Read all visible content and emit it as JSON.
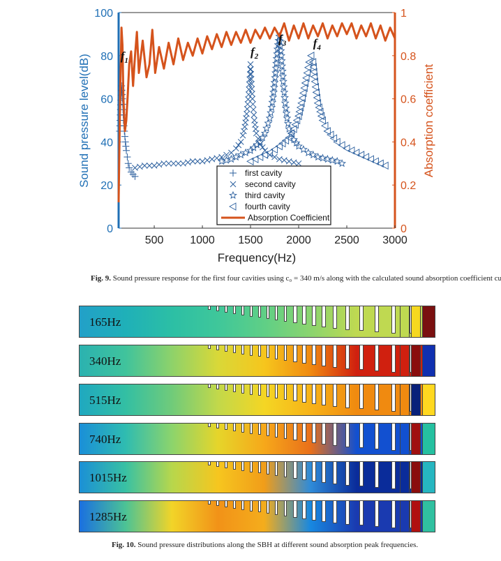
{
  "chart_data": {
    "type": "line",
    "xlabel": "Frequency(Hz)",
    "ylabel_left": "Sound pressure level(dB)",
    "ylabel_right": "Absorption coefficient",
    "xlim": [
      130,
      3000
    ],
    "ylim_left": [
      0,
      100
    ],
    "ylim_right": [
      0,
      1
    ],
    "x_ticks": [
      500,
      1000,
      1500,
      2000,
      2500,
      3000
    ],
    "y_ticks_left": [
      0,
      20,
      40,
      60,
      80,
      100
    ],
    "y_ticks_right": [
      0,
      0.2,
      0.4,
      0.6,
      0.8,
      1
    ],
    "annotations": [
      {
        "label": "f",
        "sub": "1",
        "x": 150,
        "y": 78
      },
      {
        "label": "f",
        "sub": "2",
        "x": 1500,
        "y": 80
      },
      {
        "label": "f",
        "sub": "3",
        "x": 1790,
        "y": 86
      },
      {
        "label": "f",
        "sub": "4",
        "x": 2150,
        "y": 84
      }
    ],
    "legend_position": "bottom-center",
    "series": [
      {
        "name": "first  cavity",
        "marker": "+",
        "axis": "left",
        "x": [
          140,
          150,
          160,
          170,
          180,
          190,
          200,
          210,
          220,
          230,
          240,
          260,
          280,
          300
        ],
        "y": [
          45,
          55,
          66,
          60,
          50,
          45,
          40,
          36,
          33,
          30,
          28,
          26,
          25,
          24
        ]
      },
      {
        "name": "second  cavity",
        "marker": "x",
        "axis": "left",
        "x": [
          300,
          400,
          500,
          600,
          700,
          800,
          900,
          1000,
          1100,
          1200,
          1300,
          1350,
          1400,
          1420,
          1440,
          1460,
          1480,
          1500,
          1520,
          1540,
          1560,
          1600,
          1650,
          1700,
          1750,
          1800,
          1900,
          2000
        ],
        "y": [
          28,
          29,
          29,
          30,
          30,
          30,
          31,
          31,
          32,
          33,
          35,
          37,
          40,
          43,
          47,
          53,
          62,
          76,
          60,
          50,
          44,
          39,
          36,
          34,
          33,
          32,
          31,
          30
        ]
      },
      {
        "name": "third  cavity",
        "marker": "star",
        "axis": "left",
        "x": [
          1200,
          1300,
          1400,
          1500,
          1600,
          1650,
          1700,
          1720,
          1740,
          1760,
          1780,
          1800,
          1820,
          1840,
          1860,
          1880,
          1900,
          1950,
          2000,
          2100,
          2200,
          2300,
          2400,
          2450
        ],
        "y": [
          31,
          32,
          34,
          36,
          40,
          44,
          51,
          56,
          63,
          72,
          83,
          89,
          80,
          68,
          58,
          51,
          46,
          41,
          38,
          35,
          33,
          32,
          31,
          30
        ]
      },
      {
        "name": "fourth  cavity",
        "marker": "triangle-left",
        "axis": "left",
        "x": [
          1500,
          1600,
          1700,
          1800,
          1900,
          1950,
          2000,
          2030,
          2060,
          2090,
          2110,
          2130,
          2150,
          2170,
          2200,
          2250,
          2300,
          2400,
          2500,
          2600,
          2700,
          2800,
          2900
        ],
        "y": [
          31,
          33,
          35,
          38,
          42,
          46,
          52,
          58,
          65,
          72,
          77,
          80,
          77,
          68,
          58,
          50,
          45,
          40,
          37,
          35,
          33,
          31,
          29
        ]
      },
      {
        "name": "Absorption Coefficient",
        "marker": "line",
        "color": "#d5531c",
        "axis": "right",
        "x": [
          130,
          145,
          160,
          170,
          180,
          195,
          210,
          225,
          240,
          260,
          280,
          300,
          320,
          340,
          380,
          420,
          450,
          480,
          510,
          550,
          600,
          650,
          700,
          750,
          800,
          850,
          900,
          950,
          1000,
          1050,
          1100,
          1150,
          1200,
          1250,
          1300,
          1350,
          1400,
          1450,
          1500,
          1550,
          1600,
          1650,
          1700,
          1750,
          1800,
          1850,
          1900,
          1950,
          2000,
          2050,
          2100,
          2150,
          2200,
          2250,
          2300,
          2350,
          2400,
          2450,
          2500,
          2550,
          2600,
          2650,
          2700,
          2750,
          2800,
          2850,
          2900,
          2950,
          3000
        ],
        "y": [
          0.12,
          0.6,
          0.93,
          0.85,
          0.6,
          0.45,
          0.5,
          0.62,
          0.76,
          0.82,
          0.66,
          0.8,
          0.91,
          0.72,
          0.87,
          0.7,
          0.76,
          0.92,
          0.72,
          0.84,
          0.74,
          0.86,
          0.76,
          0.88,
          0.78,
          0.86,
          0.8,
          0.88,
          0.81,
          0.89,
          0.83,
          0.9,
          0.84,
          0.91,
          0.85,
          0.91,
          0.86,
          0.92,
          0.86,
          0.92,
          0.88,
          0.93,
          0.88,
          0.93,
          0.89,
          0.95,
          0.87,
          0.94,
          0.88,
          0.95,
          0.88,
          0.94,
          0.89,
          0.95,
          0.88,
          0.94,
          0.89,
          0.95,
          0.9,
          0.95,
          0.88,
          0.94,
          0.89,
          0.95,
          0.88,
          0.94,
          0.87,
          0.93,
          0.88
        ]
      }
    ]
  },
  "figure9_caption": {
    "label": "Fig. 9.",
    "text": "Sound pressure response for the first four cavities using c₀ = 340 m/s along with the calculated sound absorption coefficient curve."
  },
  "figure10": {
    "strips": [
      {
        "label": "165Hz",
        "gradient": [
          "#22a0c8",
          "#1fb0b8",
          "#2cbfa5",
          "#3fc79a",
          "#5fcf86",
          "#8bd46f",
          "#bfd951",
          "#f6d820",
          "#7a1010"
        ]
      },
      {
        "label": "340Hz",
        "gradient": [
          "#2bb2b0",
          "#40c39c",
          "#8ed26a",
          "#d9d838",
          "#f6c61d",
          "#f08a10",
          "#d0200f",
          "#8a0d0d",
          "#1030b0"
        ]
      },
      {
        "label": "515Hz",
        "gradient": [
          "#1fa8c0",
          "#33bfa3",
          "#70cb7a",
          "#c2d84a",
          "#f4d624",
          "#f7b318",
          "#f08a10",
          "#08207a",
          "#ffd820"
        ]
      },
      {
        "label": "740Hz",
        "gradient": [
          "#1a8fd8",
          "#2fbcb0",
          "#8cd46c",
          "#e6d52a",
          "#f6a81a",
          "#e9701a",
          "#1250d0",
          "#a01010",
          "#25c0a0"
        ]
      },
      {
        "label": "1015Hz",
        "gradient": [
          "#1b90d6",
          "#39c1a3",
          "#b7d74c",
          "#f6c61f",
          "#f19d19",
          "#2f8bd8",
          "#0a2c9a",
          "#8a0d0d",
          "#26b6c0"
        ]
      },
      {
        "label": "1285Hz",
        "gradient": [
          "#1a70e0",
          "#4cc395",
          "#f2d428",
          "#f29218",
          "#f4ad1c",
          "#1888e0",
          "#1a3ab0",
          "#b01010",
          "#30c0a0"
        ]
      }
    ]
  },
  "figure10_caption": {
    "label": "Fig. 10.",
    "text": "Sound pressure distributions along the SBH at different sound absorption peak frequencies."
  }
}
